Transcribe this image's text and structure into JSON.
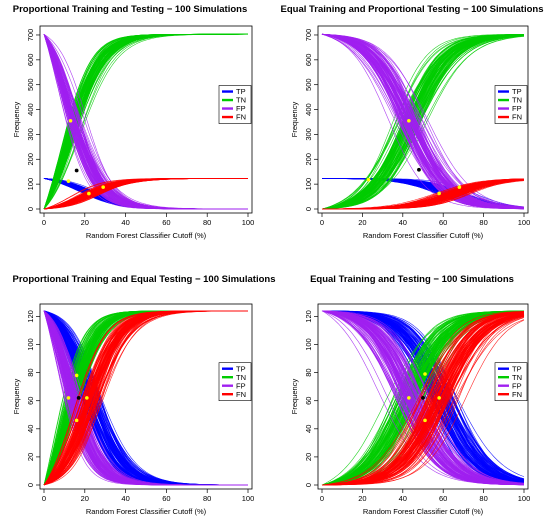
{
  "figure": {
    "colors": {
      "TP": "#0000ff",
      "TN": "#00cc00",
      "FP": "#a020f0",
      "FN": "#ff0000",
      "intersection": "#ffff00",
      "marker": "#000000"
    }
  },
  "chart_data": [
    {
      "type": "line",
      "title": "Proportional Training and Testing − 100 Simulations",
      "xlabel": "Random Forest Classifier Cutoff (%)",
      "ylabel": "Frequency",
      "xlim": [
        0,
        100
      ],
      "ylim": [
        0,
        720
      ],
      "xticks": [
        0,
        20,
        40,
        60,
        80,
        100
      ],
      "yticks": [
        0,
        100,
        200,
        300,
        400,
        500,
        600,
        700
      ],
      "legend": {
        "position": "right",
        "entries": [
          "TP",
          "TN",
          "FP",
          "FN"
        ]
      },
      "runs_per_series": 100,
      "series": [
        {
          "name": "TP",
          "start": 123,
          "end": 0,
          "mid": 22,
          "scale": 9,
          "spread": 6
        },
        {
          "name": "TN",
          "start": 0,
          "end": 703,
          "mid": 12,
          "scale": 8,
          "spread": 5
        },
        {
          "name": "FP",
          "start": 703,
          "end": 0,
          "mid": 12,
          "scale": 8,
          "spread": 5
        },
        {
          "name": "FN",
          "start": 0,
          "end": 123,
          "mid": 22,
          "scale": 9,
          "spread": 6
        }
      ],
      "intersections": [
        {
          "x": 13,
          "y": 355
        },
        {
          "x": 22,
          "y": 62
        },
        {
          "x": 12,
          "y": 112
        },
        {
          "x": 29,
          "y": 88
        }
      ],
      "center_marker": {
        "x": 16,
        "y": 155
      }
    },
    {
      "type": "line",
      "title": "Equal Training and Proportional Testing − 100 Simulations",
      "xlabel": "Random Forest Classifier Cutoff (%)",
      "ylabel": "Frequency",
      "xlim": [
        0,
        100
      ],
      "ylim": [
        0,
        720
      ],
      "xticks": [
        0,
        20,
        40,
        60,
        80,
        100
      ],
      "yticks": [
        0,
        100,
        200,
        300,
        400,
        500,
        600,
        700
      ],
      "legend": {
        "position": "right",
        "entries": [
          "TP",
          "TN",
          "FP",
          "FN"
        ]
      },
      "runs_per_series": 100,
      "series": [
        {
          "name": "TP",
          "start": 123,
          "end": 0,
          "mid": 64,
          "scale": 10,
          "spread": 8
        },
        {
          "name": "TN",
          "start": 0,
          "end": 703,
          "mid": 43,
          "scale": 10,
          "spread": 8
        },
        {
          "name": "FP",
          "start": 703,
          "end": 0,
          "mid": 43,
          "scale": 10,
          "spread": 8
        },
        {
          "name": "FN",
          "start": 0,
          "end": 123,
          "mid": 64,
          "scale": 10,
          "spread": 8
        }
      ],
      "intersections": [
        {
          "x": 43,
          "y": 355
        },
        {
          "x": 58,
          "y": 63
        },
        {
          "x": 23,
          "y": 118
        },
        {
          "x": 68,
          "y": 88
        }
      ],
      "center_marker": {
        "x": 48,
        "y": 158
      }
    },
    {
      "type": "line",
      "title": "Proportional Training and Equal Testing − 100 Simulations",
      "xlabel": "Random Forest Classifier Cutoff (%)",
      "ylabel": "Frequency",
      "xlim": [
        0,
        100
      ],
      "ylim": [
        0,
        126
      ],
      "xticks": [
        0,
        20,
        40,
        60,
        80,
        100
      ],
      "yticks": [
        0,
        20,
        40,
        60,
        80,
        100,
        120
      ],
      "legend": {
        "position": "right",
        "entries": [
          "TP",
          "TN",
          "FP",
          "FN"
        ]
      },
      "runs_per_series": 100,
      "series": [
        {
          "name": "TP",
          "start": 124,
          "end": 0,
          "mid": 22,
          "scale": 8,
          "spread": 7
        },
        {
          "name": "TN",
          "start": 0,
          "end": 124,
          "mid": 12,
          "scale": 7,
          "spread": 6
        },
        {
          "name": "FP",
          "start": 124,
          "end": 0,
          "mid": 12,
          "scale": 7,
          "spread": 6
        },
        {
          "name": "FN",
          "start": 0,
          "end": 124,
          "mid": 22,
          "scale": 8,
          "spread": 7
        }
      ],
      "intersections": [
        {
          "x": 12,
          "y": 62
        },
        {
          "x": 16,
          "y": 78
        },
        {
          "x": 16,
          "y": 46
        },
        {
          "x": 21,
          "y": 62
        }
      ],
      "center_marker": {
        "x": 17,
        "y": 62
      }
    },
    {
      "type": "line",
      "title": "Equal Training and Testing − 100 Simulations",
      "xlabel": "Random Forest Classifier Cutoff (%)",
      "ylabel": "Frequency",
      "xlim": [
        0,
        100
      ],
      "ylim": [
        0,
        126
      ],
      "xticks": [
        0,
        20,
        40,
        60,
        80,
        100
      ],
      "yticks": [
        0,
        20,
        40,
        60,
        80,
        100,
        120
      ],
      "legend": {
        "position": "right",
        "entries": [
          "TP",
          "TN",
          "FP",
          "FN"
        ]
      },
      "runs_per_series": 100,
      "series": [
        {
          "name": "TP",
          "start": 124,
          "end": 0,
          "mid": 58,
          "scale": 10,
          "spread": 9
        },
        {
          "name": "TN",
          "start": 0,
          "end": 124,
          "mid": 43,
          "scale": 10,
          "spread": 9
        },
        {
          "name": "FP",
          "start": 124,
          "end": 0,
          "mid": 43,
          "scale": 10,
          "spread": 9
        },
        {
          "name": "FN",
          "start": 0,
          "end": 124,
          "mid": 58,
          "scale": 10,
          "spread": 9
        }
      ],
      "intersections": [
        {
          "x": 43,
          "y": 62
        },
        {
          "x": 51,
          "y": 79
        },
        {
          "x": 51,
          "y": 46
        },
        {
          "x": 58,
          "y": 62
        }
      ],
      "center_marker": {
        "x": 50,
        "y": 62
      }
    }
  ]
}
